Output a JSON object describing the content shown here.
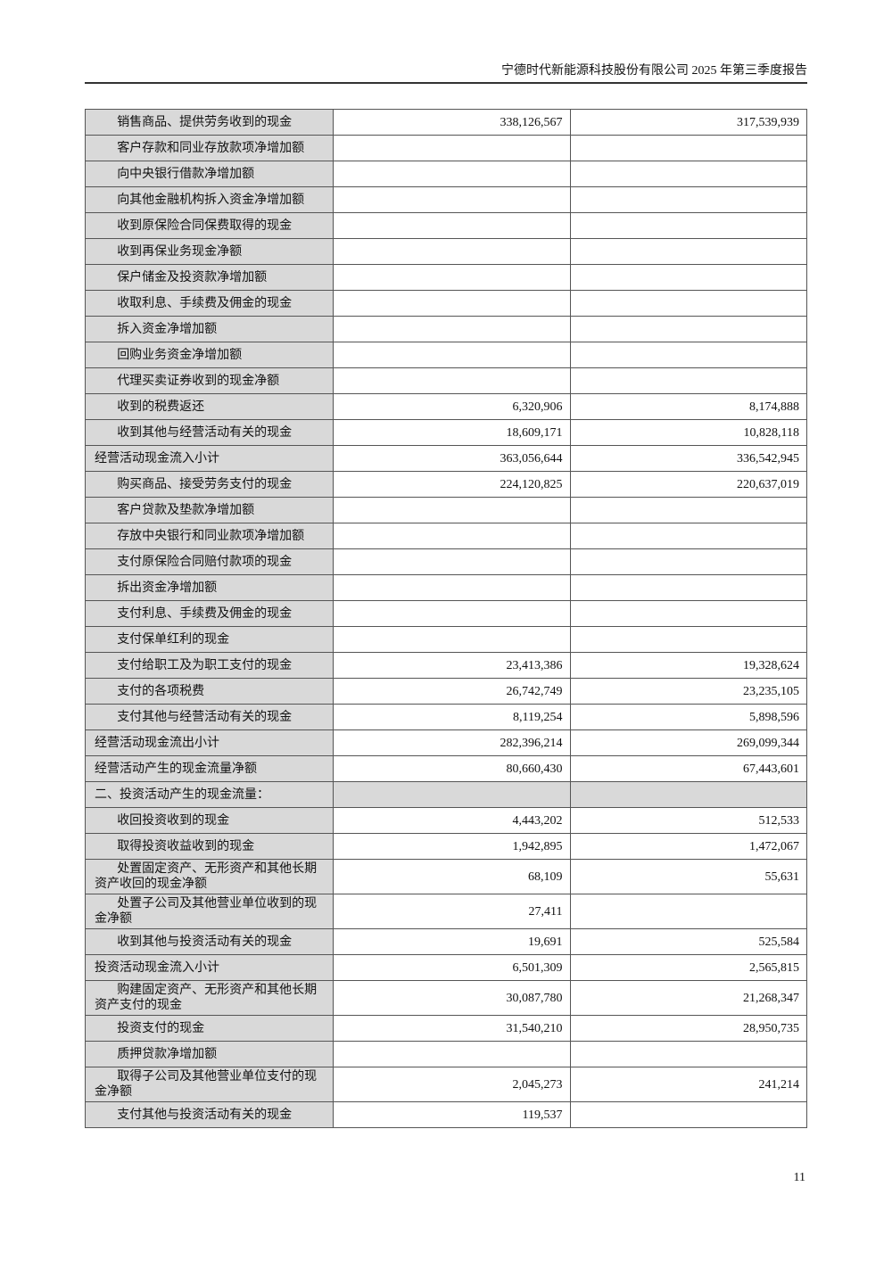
{
  "header": {
    "title": "宁德时代新能源科技股份有限公司 2025 年第三季度报告"
  },
  "table": {
    "rows": [
      {
        "label": "销售商品、提供劳务收到的现金",
        "current": "338,126,567",
        "prior": "317,539,939",
        "type": "item"
      },
      {
        "label": "客户存款和同业存放款项净增加额",
        "current": "",
        "prior": "",
        "type": "item"
      },
      {
        "label": "向中央银行借款净增加额",
        "current": "",
        "prior": "",
        "type": "item"
      },
      {
        "label": "向其他金融机构拆入资金净增加额",
        "current": "",
        "prior": "",
        "type": "item"
      },
      {
        "label": "收到原保险合同保费取得的现金",
        "current": "",
        "prior": "",
        "type": "item"
      },
      {
        "label": "收到再保业务现金净额",
        "current": "",
        "prior": "",
        "type": "item"
      },
      {
        "label": "保户储金及投资款净增加额",
        "current": "",
        "prior": "",
        "type": "item"
      },
      {
        "label": "收取利息、手续费及佣金的现金",
        "current": "",
        "prior": "",
        "type": "item"
      },
      {
        "label": "拆入资金净增加额",
        "current": "",
        "prior": "",
        "type": "item"
      },
      {
        "label": "回购业务资金净增加额",
        "current": "",
        "prior": "",
        "type": "item"
      },
      {
        "label": "代理买卖证券收到的现金净额",
        "current": "",
        "prior": "",
        "type": "item"
      },
      {
        "label": "收到的税费返还",
        "current": "6,320,906",
        "prior": "8,174,888",
        "type": "item"
      },
      {
        "label": "收到其他与经营活动有关的现金",
        "current": "18,609,171",
        "prior": "10,828,118",
        "type": "item"
      },
      {
        "label": "经营活动现金流入小计",
        "current": "363,056,644",
        "prior": "336,542,945",
        "type": "subtotal"
      },
      {
        "label": "购买商品、接受劳务支付的现金",
        "current": "224,120,825",
        "prior": "220,637,019",
        "type": "item"
      },
      {
        "label": "客户贷款及垫款净增加额",
        "current": "",
        "prior": "",
        "type": "item"
      },
      {
        "label": "存放中央银行和同业款项净增加额",
        "current": "",
        "prior": "",
        "type": "item"
      },
      {
        "label": "支付原保险合同赔付款项的现金",
        "current": "",
        "prior": "",
        "type": "item"
      },
      {
        "label": "拆出资金净增加额",
        "current": "",
        "prior": "",
        "type": "item"
      },
      {
        "label": "支付利息、手续费及佣金的现金",
        "current": "",
        "prior": "",
        "type": "item"
      },
      {
        "label": "支付保单红利的现金",
        "current": "",
        "prior": "",
        "type": "item"
      },
      {
        "label": "支付给职工及为职工支付的现金",
        "current": "23,413,386",
        "prior": "19,328,624",
        "type": "item"
      },
      {
        "label": "支付的各项税费",
        "current": "26,742,749",
        "prior": "23,235,105",
        "type": "item"
      },
      {
        "label": "支付其他与经营活动有关的现金",
        "current": "8,119,254",
        "prior": "5,898,596",
        "type": "item"
      },
      {
        "label": "经营活动现金流出小计",
        "current": "282,396,214",
        "prior": "269,099,344",
        "type": "subtotal"
      },
      {
        "label": "经营活动产生的现金流量净额",
        "current": "80,660,430",
        "prior": "67,443,601",
        "type": "subtotal"
      },
      {
        "label": "二、投资活动产生的现金流量：",
        "current": "",
        "prior": "",
        "type": "section"
      },
      {
        "label": "收回投资收到的现金",
        "current": "4,443,202",
        "prior": "512,533",
        "type": "item"
      },
      {
        "label": "取得投资收益收到的现金",
        "current": "1,942,895",
        "prior": "1,472,067",
        "type": "item"
      },
      {
        "label": "处置固定资产、无形资产和其他长期资产收回的现金净额",
        "current": "68,109",
        "prior": "55,631",
        "type": "item-tall"
      },
      {
        "label": "处置子公司及其他营业单位收到的现金净额",
        "current": "27,411",
        "prior": "",
        "type": "item-tall"
      },
      {
        "label": "收到其他与投资活动有关的现金",
        "current": "19,691",
        "prior": "525,584",
        "type": "item"
      },
      {
        "label": "投资活动现金流入小计",
        "current": "6,501,309",
        "prior": "2,565,815",
        "type": "subtotal"
      },
      {
        "label": "购建固定资产、无形资产和其他长期资产支付的现金",
        "current": "30,087,780",
        "prior": "21,268,347",
        "type": "item-tall"
      },
      {
        "label": "投资支付的现金",
        "current": "31,540,210",
        "prior": "28,950,735",
        "type": "item"
      },
      {
        "label": "质押贷款净增加额",
        "current": "",
        "prior": "",
        "type": "item"
      },
      {
        "label": "取得子公司及其他营业单位支付的现金净额",
        "current": "2,045,273",
        "prior": "241,214",
        "type": "item-tall"
      },
      {
        "label": "支付其他与投资活动有关的现金",
        "current": "119,537",
        "prior": "",
        "type": "item"
      }
    ]
  },
  "footer": {
    "page_number": "11"
  }
}
